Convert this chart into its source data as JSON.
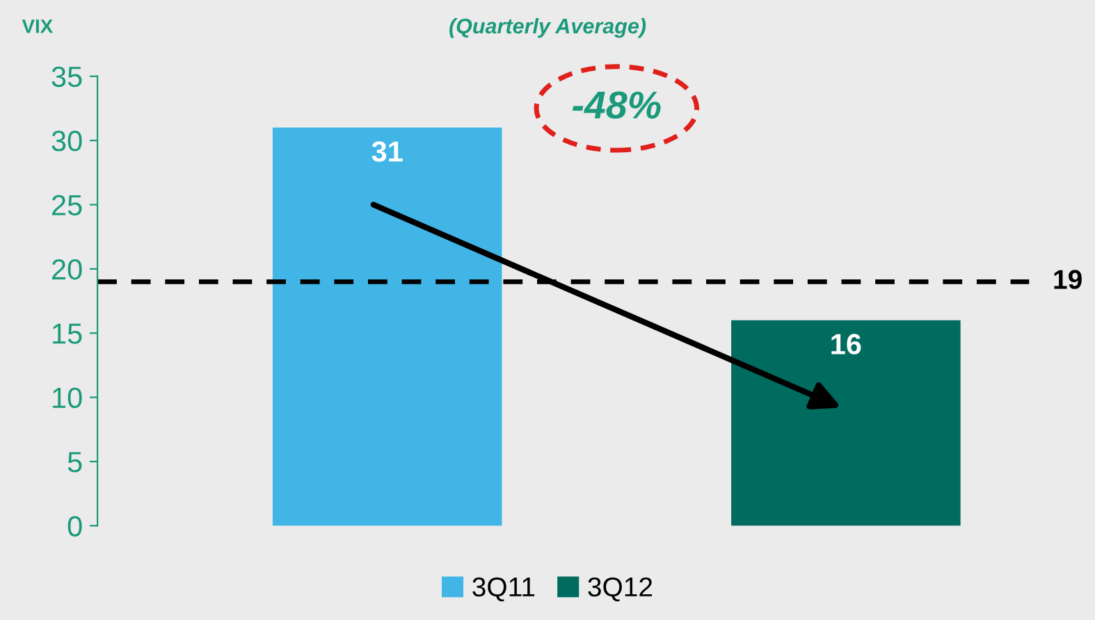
{
  "chart_data": {
    "type": "bar",
    "subtitle": "(Quarterly Average)",
    "ylabel": "VIX",
    "categories": [
      null,
      null
    ],
    "series": [
      {
        "name": "3Q11",
        "color": "#41b6e6",
        "values": [
          31,
          null
        ]
      },
      {
        "name": "3Q12",
        "color": "#006b5f",
        "values": [
          null,
          16
        ]
      }
    ],
    "ylim": [
      0,
      35
    ],
    "yticks": [
      0,
      5,
      10,
      15,
      20,
      25,
      30,
      35
    ],
    "grid": false,
    "legend": "bottom",
    "data_labels": true,
    "ref_lines": [
      {
        "axis": "y",
        "value": 19,
        "label": "19",
        "color": "#000000",
        "line_style": "dashed"
      }
    ],
    "annotations": [
      "-48%"
    ]
  }
}
